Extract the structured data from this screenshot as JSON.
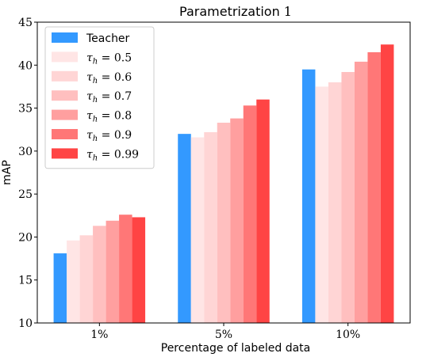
{
  "chart_data": {
    "type": "bar",
    "title": "Parametrization 1",
    "xlabel": "Percentage of labeled data",
    "ylabel": "mAP",
    "categories": [
      "1%",
      "5%",
      "10%"
    ],
    "ylim": [
      10,
      45
    ],
    "yticks": [
      10,
      15,
      20,
      25,
      30,
      35,
      40,
      45
    ],
    "grid": false,
    "legend_position": "top-left",
    "series": [
      {
        "name": "Teacher",
        "color": "#3399ff",
        "values": [
          18.1,
          32.0,
          39.5
        ]
      },
      {
        "name": "τh = 0.5",
        "color": "#ffe5e5",
        "values": [
          19.6,
          31.6,
          37.5
        ]
      },
      {
        "name": "τh = 0.6",
        "color": "#ffd5d5",
        "values": [
          20.2,
          32.2,
          38.0
        ]
      },
      {
        "name": "τh = 0.7",
        "color": "#ffbfbf",
        "values": [
          21.3,
          33.3,
          39.2
        ]
      },
      {
        "name": "τh = 0.8",
        "color": "#ff9f9f",
        "values": [
          21.9,
          33.8,
          40.4
        ]
      },
      {
        "name": "τh = 0.9",
        "color": "#ff7777",
        "values": [
          22.6,
          35.3,
          41.5
        ]
      },
      {
        "name": "τh = 0.99",
        "color": "#ff4444",
        "values": [
          22.3,
          36.0,
          42.4
        ]
      }
    ]
  }
}
